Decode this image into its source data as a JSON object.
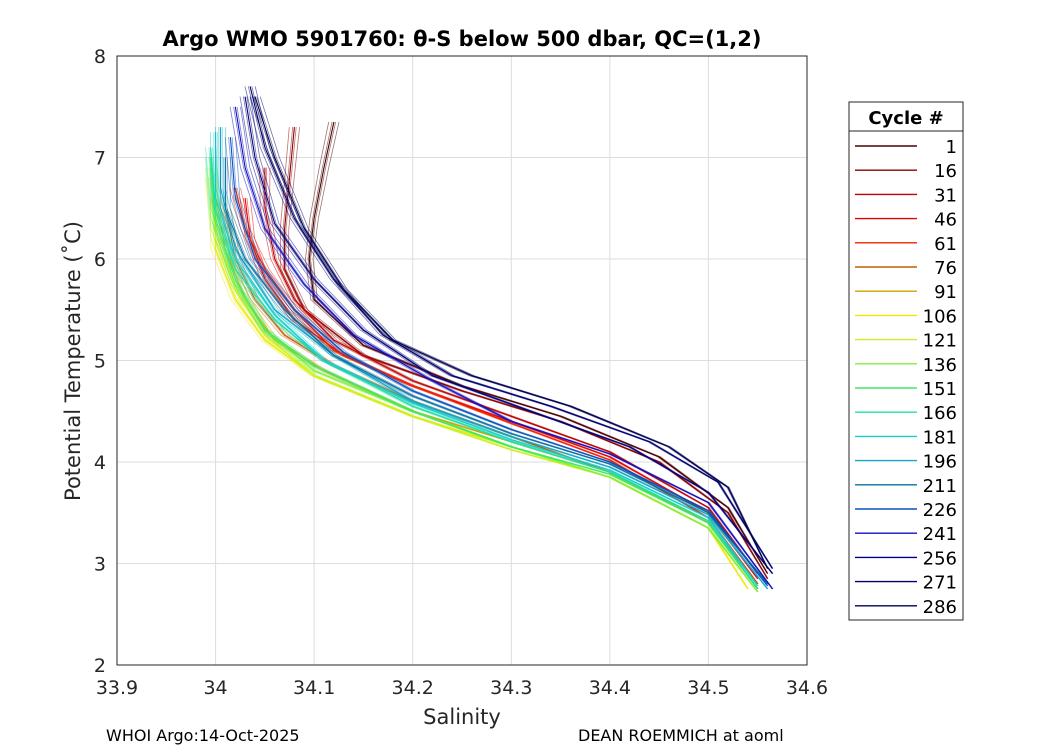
{
  "chart_data": {
    "type": "line",
    "title": "Argo WMO 5901760: θ-S below 500 dbar,  QC=(1,2)",
    "xlabel": "Salinity",
    "ylabel": "Potential Temperature (˚C)",
    "xlim": [
      33.9,
      34.6
    ],
    "ylim": [
      2,
      8
    ],
    "xticks": [
      "33.9",
      "34",
      "34.1",
      "34.2",
      "34.3",
      "34.4",
      "34.5",
      "34.6"
    ],
    "yticks": [
      "2",
      "3",
      "4",
      "5",
      "6",
      "7",
      "8"
    ],
    "grid": true,
    "legend": {
      "title": "Cycle #",
      "location": "right-outside",
      "entries": [
        {
          "label": "1",
          "color": "#4d0000"
        },
        {
          "label": "16",
          "color": "#8a0000"
        },
        {
          "label": "31",
          "color": "#c00000"
        },
        {
          "label": "46",
          "color": "#e60000"
        },
        {
          "label": "61",
          "color": "#f02000"
        },
        {
          "label": "76",
          "color": "#c06000"
        },
        {
          "label": "91",
          "color": "#d0a000"
        },
        {
          "label": "106",
          "color": "#f0e800"
        },
        {
          "label": "121",
          "color": "#c8f020"
        },
        {
          "label": "136",
          "color": "#80f040"
        },
        {
          "label": "151",
          "color": "#40e860"
        },
        {
          "label": "166",
          "color": "#20e0a0"
        },
        {
          "label": "181",
          "color": "#10d0d0"
        },
        {
          "label": "196",
          "color": "#10a8c8"
        },
        {
          "label": "211",
          "color": "#0870a0"
        },
        {
          "label": "226",
          "color": "#0850c0"
        },
        {
          "label": "241",
          "color": "#1010c0"
        },
        {
          "label": "256",
          "color": "#000080"
        },
        {
          "label": "271",
          "color": "#000070"
        },
        {
          "label": "286",
          "color": "#000050"
        }
      ]
    },
    "series": [
      {
        "name": "1",
        "salinity": [
          34.12,
          34.11,
          34.1,
          34.095,
          34.1,
          34.15,
          34.25,
          34.35,
          34.45,
          34.52,
          34.56
        ],
        "theta": [
          7.35,
          6.9,
          6.4,
          6.0,
          5.6,
          5.15,
          4.75,
          4.45,
          4.05,
          3.55,
          2.9
        ]
      },
      {
        "name": "16",
        "salinity": [
          34.08,
          34.075,
          34.07,
          34.07,
          34.09,
          34.15,
          34.25,
          34.35,
          34.45,
          34.52,
          34.56
        ],
        "theta": [
          7.3,
          6.8,
          6.3,
          5.9,
          5.5,
          5.05,
          4.7,
          4.4,
          4.0,
          3.5,
          2.85
        ]
      },
      {
        "name": "31",
        "salinity": [
          34.05,
          34.05,
          34.06,
          34.08,
          34.12,
          34.2,
          34.3,
          34.4,
          34.5,
          34.55
        ],
        "theta": [
          6.9,
          6.5,
          6.0,
          5.6,
          5.2,
          4.8,
          4.45,
          4.1,
          3.55,
          2.9
        ]
      },
      {
        "name": "46",
        "salinity": [
          34.03,
          34.035,
          34.05,
          34.08,
          34.13,
          34.2,
          34.3,
          34.4,
          34.5,
          34.55
        ],
        "theta": [
          6.6,
          6.2,
          5.8,
          5.4,
          5.05,
          4.75,
          4.4,
          4.05,
          3.5,
          2.85
        ]
      },
      {
        "name": "61",
        "salinity": [
          34.02,
          34.03,
          34.05,
          34.08,
          34.12,
          34.2,
          34.3,
          34.4,
          34.5,
          34.55
        ],
        "theta": [
          6.7,
          6.3,
          5.9,
          5.5,
          5.1,
          4.75,
          4.38,
          4.02,
          3.45,
          2.8
        ]
      },
      {
        "name": "76",
        "salinity": [
          34.01,
          34.02,
          34.04,
          34.07,
          34.12,
          34.2,
          34.3,
          34.4,
          34.5,
          34.55
        ],
        "theta": [
          6.5,
          6.0,
          5.6,
          5.25,
          4.95,
          4.6,
          4.25,
          3.9,
          3.4,
          2.8
        ]
      },
      {
        "name": "91",
        "salinity": [
          34.0,
          34.01,
          34.03,
          34.06,
          34.11,
          34.2,
          34.3,
          34.4,
          34.5,
          34.55
        ],
        "theta": [
          6.6,
          6.1,
          5.6,
          5.2,
          4.9,
          4.5,
          4.2,
          3.9,
          3.4,
          2.75
        ]
      },
      {
        "name": "106",
        "salinity": [
          34.0,
          34.0,
          34.02,
          34.05,
          34.1,
          34.2,
          34.3,
          34.4,
          34.5,
          34.54
        ],
        "theta": [
          6.6,
          6.1,
          5.6,
          5.2,
          4.85,
          4.45,
          4.15,
          3.85,
          3.35,
          2.75
        ]
      },
      {
        "name": "121",
        "salinity": [
          33.995,
          34.0,
          34.02,
          34.05,
          34.1,
          34.2,
          34.3,
          34.4,
          34.5,
          34.55
        ],
        "theta": [
          6.8,
          6.2,
          5.7,
          5.25,
          4.85,
          4.45,
          4.12,
          3.85,
          3.35,
          2.72
        ]
      },
      {
        "name": "136",
        "salinity": [
          33.995,
          34.0,
          34.02,
          34.05,
          34.1,
          34.2,
          34.3,
          34.4,
          34.5,
          34.55
        ],
        "theta": [
          6.9,
          6.3,
          5.75,
          5.3,
          4.9,
          4.5,
          4.15,
          3.85,
          3.35,
          2.72
        ]
      },
      {
        "name": "151",
        "salinity": [
          33.995,
          34.0,
          34.02,
          34.05,
          34.1,
          34.2,
          34.3,
          34.4,
          34.5,
          34.55
        ],
        "theta": [
          7.0,
          6.4,
          5.8,
          5.3,
          4.95,
          4.5,
          4.15,
          3.88,
          3.4,
          2.75
        ]
      },
      {
        "name": "166",
        "salinity": [
          33.995,
          34.0,
          34.02,
          34.06,
          34.11,
          34.2,
          34.3,
          34.4,
          34.5,
          34.55
        ],
        "theta": [
          7.1,
          6.5,
          5.9,
          5.4,
          5.0,
          4.55,
          4.2,
          3.9,
          3.42,
          2.75
        ]
      },
      {
        "name": "181",
        "salinity": [
          34.0,
          34.0,
          34.02,
          34.06,
          34.11,
          34.2,
          34.3,
          34.4,
          34.5,
          34.55
        ],
        "theta": [
          7.25,
          6.6,
          6.0,
          5.45,
          5.0,
          4.58,
          4.22,
          3.92,
          3.45,
          2.78
        ]
      },
      {
        "name": "196",
        "salinity": [
          34.005,
          34.005,
          34.02,
          34.06,
          34.12,
          34.2,
          34.3,
          34.4,
          34.5,
          34.56
        ],
        "theta": [
          7.3,
          6.7,
          6.1,
          5.5,
          5.05,
          4.6,
          4.25,
          3.95,
          3.48,
          2.75
        ]
      },
      {
        "name": "211",
        "salinity": [
          34.01,
          34.01,
          34.03,
          34.07,
          34.12,
          34.2,
          34.3,
          34.4,
          34.5,
          34.56
        ],
        "theta": [
          7.0,
          6.5,
          6.0,
          5.5,
          5.05,
          4.65,
          4.28,
          3.98,
          3.5,
          2.8
        ]
      },
      {
        "name": "226",
        "salinity": [
          34.015,
          34.02,
          34.04,
          34.08,
          34.13,
          34.2,
          34.3,
          34.4,
          34.5,
          34.56
        ],
        "theta": [
          7.2,
          6.6,
          6.0,
          5.5,
          5.08,
          4.7,
          4.32,
          4.0,
          3.52,
          2.78
        ]
      },
      {
        "name": "241",
        "salinity": [
          34.02,
          34.03,
          34.05,
          34.09,
          34.14,
          34.22,
          34.3,
          34.4,
          34.5,
          34.565
        ],
        "theta": [
          7.5,
          6.9,
          6.3,
          5.75,
          5.25,
          4.8,
          4.4,
          4.08,
          3.6,
          2.75
        ]
      },
      {
        "name": "256",
        "salinity": [
          34.03,
          34.04,
          34.06,
          34.1,
          34.15,
          34.22,
          34.32,
          34.42,
          34.5,
          34.565
        ],
        "theta": [
          7.6,
          7.0,
          6.35,
          5.8,
          5.3,
          4.85,
          4.5,
          4.15,
          3.7,
          2.9
        ]
      },
      {
        "name": "271",
        "salinity": [
          34.035,
          34.05,
          34.08,
          34.12,
          34.17,
          34.24,
          34.34,
          34.44,
          34.51,
          34.565
        ],
        "theta": [
          7.7,
          7.1,
          6.4,
          5.8,
          5.25,
          4.85,
          4.55,
          4.2,
          3.8,
          2.95
        ]
      },
      {
        "name": "286",
        "salinity": [
          34.04,
          34.06,
          34.09,
          34.13,
          34.18,
          34.26,
          34.36,
          34.46,
          34.52,
          34.56
        ],
        "theta": [
          7.6,
          7.0,
          6.3,
          5.7,
          5.2,
          4.85,
          4.55,
          4.15,
          3.75,
          2.95
        ]
      }
    ]
  },
  "footer": {
    "left": "WHOI Argo:14-Oct-2025",
    "right": "DEAN ROEMMICH at aoml"
  }
}
